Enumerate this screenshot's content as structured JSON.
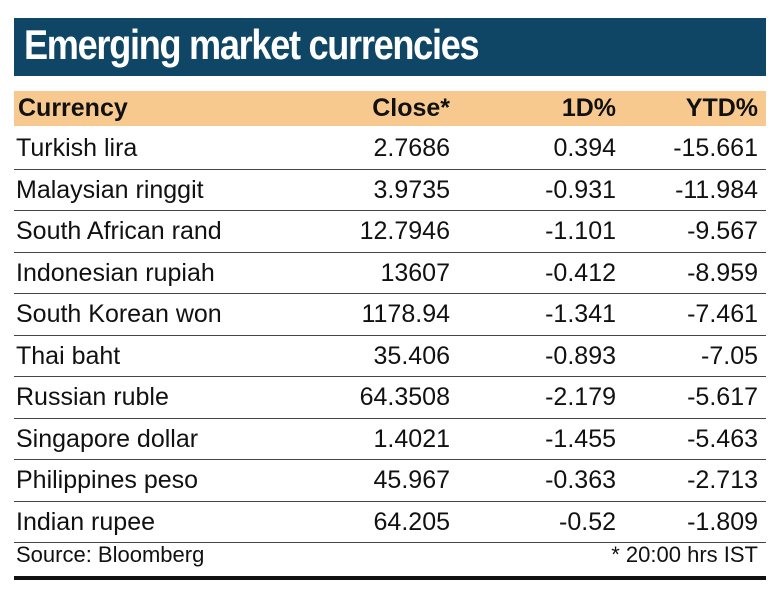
{
  "title": "Emerging market currencies",
  "chart_data": {
    "type": "table",
    "title": "Emerging market currencies",
    "columns": [
      "Currency",
      "Close*",
      "1D%",
      "YTD%"
    ],
    "rows": [
      [
        "Turkish lira",
        "2.7686",
        "0.394",
        "-15.661"
      ],
      [
        "Malaysian ringgit",
        "3.9735",
        "-0.931",
        "-11.984"
      ],
      [
        "South African rand",
        "12.7946",
        "-1.101",
        "-9.567"
      ],
      [
        "Indonesian rupiah",
        "13607",
        "-0.412",
        "-8.959"
      ],
      [
        "South Korean won",
        "1178.94",
        "-1.341",
        "-7.461"
      ],
      [
        "Thai baht",
        "35.406",
        "-0.893",
        "-7.05"
      ],
      [
        "Russian ruble",
        "64.3508",
        "-2.179",
        "-5.617"
      ],
      [
        "Singapore dollar",
        "1.4021",
        "-1.455",
        "-5.463"
      ],
      [
        "Philippines peso",
        "45.967",
        "-0.363",
        "-2.713"
      ],
      [
        "Indian rupee",
        "64.205",
        "-0.52",
        "-1.809"
      ]
    ],
    "source": "Source: Bloomberg",
    "note": "* 20:00 hrs IST"
  },
  "colors": {
    "title_bg": "#0f4666",
    "header_bg": "#f7c98e"
  }
}
